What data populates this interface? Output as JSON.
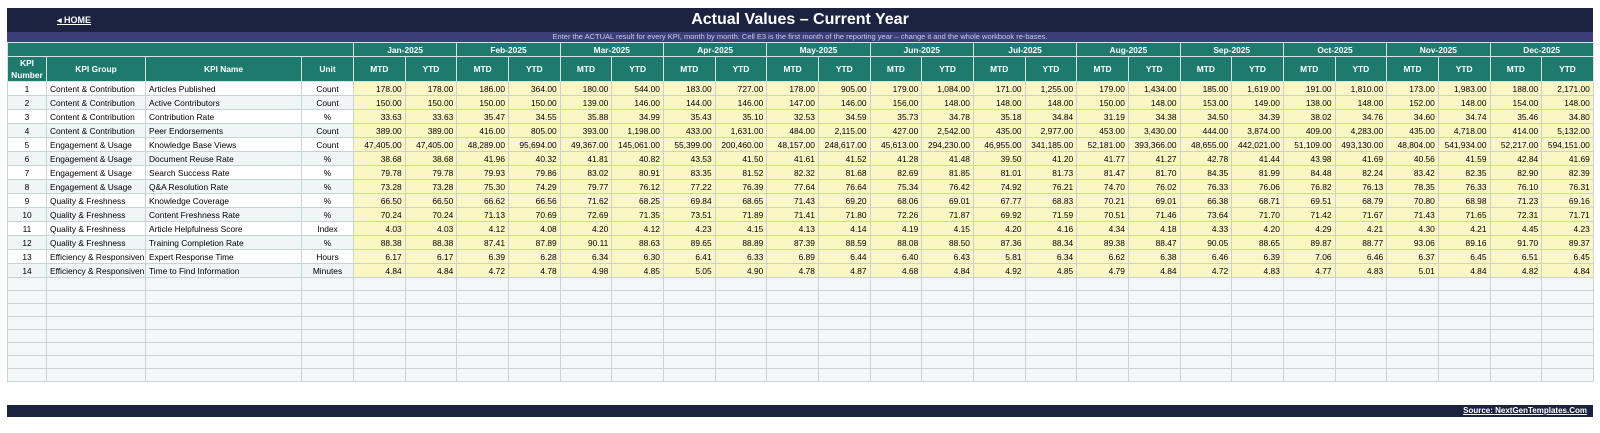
{
  "nav": {
    "home": "◂ HOME"
  },
  "title": "Actual Values  –  Current Year",
  "note": "Enter the ACTUAL result for every KPI, month by month. Cell E3 is the first month of the reporting year – change it and the whole workbook re-bases.",
  "headers": {
    "num": "KPI Number",
    "group": "KPI Group",
    "name": "KPI Name",
    "unit": "Unit",
    "mtd": "MTD",
    "ytd": "YTD"
  },
  "months": [
    "Jan-2025",
    "Feb-2025",
    "Mar-2025",
    "Apr-2025",
    "May-2025",
    "Jun-2025",
    "Jul-2025",
    "Aug-2025",
    "Sep-2025",
    "Oct-2025",
    "Nov-2025",
    "Dec-2025"
  ],
  "rows": [
    {
      "num": "1",
      "group": "Content & Contribution",
      "name": "Articles Published",
      "unit": "Count",
      "values": [
        "178.00",
        "178.00",
        "186.00",
        "364.00",
        "180.00",
        "544.00",
        "183.00",
        "727.00",
        "178.00",
        "905.00",
        "179.00",
        "1,084.00",
        "171.00",
        "1,255.00",
        "179.00",
        "1,434.00",
        "185.00",
        "1,619.00",
        "191.00",
        "1,810.00",
        "173.00",
        "1,983.00",
        "188.00",
        "2,171.00"
      ]
    },
    {
      "num": "2",
      "group": "Content & Contribution",
      "name": "Active Contributors",
      "unit": "Count",
      "values": [
        "150.00",
        "150.00",
        "150.00",
        "150.00",
        "139.00",
        "146.00",
        "144.00",
        "146.00",
        "147.00",
        "146.00",
        "156.00",
        "148.00",
        "148.00",
        "148.00",
        "150.00",
        "148.00",
        "153.00",
        "149.00",
        "138.00",
        "148.00",
        "152.00",
        "148.00",
        "154.00",
        "148.00"
      ]
    },
    {
      "num": "3",
      "group": "Content & Contribution",
      "name": "Contribution Rate",
      "unit": "%",
      "values": [
        "33.63",
        "33.63",
        "35.47",
        "34.55",
        "35.88",
        "34.99",
        "35.43",
        "35.10",
        "32.53",
        "34.59",
        "35.73",
        "34.78",
        "35.18",
        "34.84",
        "31.19",
        "34.38",
        "34.50",
        "34.39",
        "38.02",
        "34.76",
        "34.60",
        "34.74",
        "35.46",
        "34.80"
      ]
    },
    {
      "num": "4",
      "group": "Content & Contribution",
      "name": "Peer Endorsements",
      "unit": "Count",
      "values": [
        "389.00",
        "389.00",
        "416.00",
        "805.00",
        "393.00",
        "1,198.00",
        "433.00",
        "1,631.00",
        "484.00",
        "2,115.00",
        "427.00",
        "2,542.00",
        "435.00",
        "2,977.00",
        "453.00",
        "3,430.00",
        "444.00",
        "3,874.00",
        "409.00",
        "4,283.00",
        "435.00",
        "4,718.00",
        "414.00",
        "5,132.00"
      ]
    },
    {
      "num": "5",
      "group": "Engagement & Usage",
      "name": "Knowledge Base Views",
      "unit": "Count",
      "values": [
        "47,405.00",
        "47,405.00",
        "48,289.00",
        "95,694.00",
        "49,367.00",
        "145,061.00",
        "55,399.00",
        "200,460.00",
        "48,157.00",
        "248,617.00",
        "45,613.00",
        "294,230.00",
        "46,955.00",
        "341,185.00",
        "52,181.00",
        "393,366.00",
        "48,655.00",
        "442,021.00",
        "51,109.00",
        "493,130.00",
        "48,804.00",
        "541,934.00",
        "52,217.00",
        "594,151.00"
      ]
    },
    {
      "num": "6",
      "group": "Engagement & Usage",
      "name": "Document Reuse Rate",
      "unit": "%",
      "values": [
        "38.68",
        "38.68",
        "41.96",
        "40.32",
        "41.81",
        "40.82",
        "43.53",
        "41.50",
        "41.61",
        "41.52",
        "41.28",
        "41.48",
        "39.50",
        "41.20",
        "41.77",
        "41.27",
        "42.78",
        "41.44",
        "43.98",
        "41.69",
        "40.56",
        "41.59",
        "42.84",
        "41.69"
      ]
    },
    {
      "num": "7",
      "group": "Engagement & Usage",
      "name": "Search Success Rate",
      "unit": "%",
      "values": [
        "79.78",
        "79.78",
        "79.93",
        "79.86",
        "83.02",
        "80.91",
        "83.35",
        "81.52",
        "82.32",
        "81.68",
        "82.69",
        "81.85",
        "81.01",
        "81.73",
        "81.47",
        "81.70",
        "84.35",
        "81.99",
        "84.48",
        "82.24",
        "83.42",
        "82.35",
        "82.90",
        "82.39"
      ]
    },
    {
      "num": "8",
      "group": "Engagement & Usage",
      "name": "Q&A Resolution Rate",
      "unit": "%",
      "values": [
        "73.28",
        "73.28",
        "75.30",
        "74.29",
        "79.77",
        "76.12",
        "77.22",
        "76.39",
        "77.64",
        "76.64",
        "75.34",
        "76.42",
        "74.92",
        "76.21",
        "74.70",
        "76.02",
        "76.33",
        "76.06",
        "76.82",
        "76.13",
        "78.35",
        "76.33",
        "76.10",
        "76.31"
      ]
    },
    {
      "num": "9",
      "group": "Quality & Freshness",
      "name": "Knowledge Coverage",
      "unit": "%",
      "values": [
        "66.50",
        "66.50",
        "66.62",
        "66.56",
        "71.62",
        "68.25",
        "69.84",
        "68.65",
        "71.43",
        "69.20",
        "68.06",
        "69.01",
        "67.77",
        "68.83",
        "70.21",
        "69.01",
        "66.38",
        "68.71",
        "69.51",
        "68.79",
        "70.80",
        "68.98",
        "71.23",
        "69.16"
      ]
    },
    {
      "num": "10",
      "group": "Quality & Freshness",
      "name": "Content Freshness Rate",
      "unit": "%",
      "values": [
        "70.24",
        "70.24",
        "71.13",
        "70.69",
        "72.69",
        "71.35",
        "73.51",
        "71.89",
        "71.41",
        "71.80",
        "72.26",
        "71.87",
        "69.92",
        "71.59",
        "70.51",
        "71.46",
        "73.64",
        "71.70",
        "71.42",
        "71.67",
        "71.43",
        "71.65",
        "72.31",
        "71.71"
      ]
    },
    {
      "num": "11",
      "group": "Quality & Freshness",
      "name": "Article Helpfulness Score",
      "unit": "Index",
      "values": [
        "4.03",
        "4.03",
        "4.12",
        "4.08",
        "4.20",
        "4.12",
        "4.23",
        "4.15",
        "4.13",
        "4.14",
        "4.19",
        "4.15",
        "4.20",
        "4.16",
        "4.34",
        "4.18",
        "4.33",
        "4.20",
        "4.29",
        "4.21",
        "4.30",
        "4.21",
        "4.45",
        "4.23"
      ]
    },
    {
      "num": "12",
      "group": "Quality & Freshness",
      "name": "Training Completion Rate",
      "unit": "%",
      "values": [
        "88.38",
        "88.38",
        "87.41",
        "87.89",
        "90.11",
        "88.63",
        "89.65",
        "88.89",
        "87.39",
        "88.59",
        "88.08",
        "88.50",
        "87.36",
        "88.34",
        "89.38",
        "88.47",
        "90.05",
        "88.65",
        "89.87",
        "88.77",
        "93.06",
        "89.16",
        "91.70",
        "89.37"
      ]
    },
    {
      "num": "13",
      "group": "Efficiency & Responsiven",
      "name": "Expert Response Time",
      "unit": "Hours",
      "values": [
        "6.17",
        "6.17",
        "6.39",
        "6.28",
        "6.34",
        "6.30",
        "6.41",
        "6.33",
        "6.89",
        "6.44",
        "6.40",
        "6.43",
        "5.81",
        "6.34",
        "6.62",
        "6.38",
        "6.46",
        "6.39",
        "7.06",
        "6.46",
        "6.37",
        "6.45",
        "6.51",
        "6.45"
      ]
    },
    {
      "num": "14",
      "group": "Efficiency & Responsiven",
      "name": "Time to Find Information",
      "unit": "Minutes",
      "values": [
        "4.84",
        "4.84",
        "4.72",
        "4.78",
        "4.98",
        "4.85",
        "5.05",
        "4.90",
        "4.78",
        "4.87",
        "4.68",
        "4.84",
        "4.92",
        "4.85",
        "4.79",
        "4.84",
        "4.72",
        "4.83",
        "4.77",
        "4.83",
        "5.01",
        "4.84",
        "4.82",
        "4.84"
      ]
    }
  ],
  "footer": {
    "source": "Source: NextGenTemplates.Com"
  }
}
